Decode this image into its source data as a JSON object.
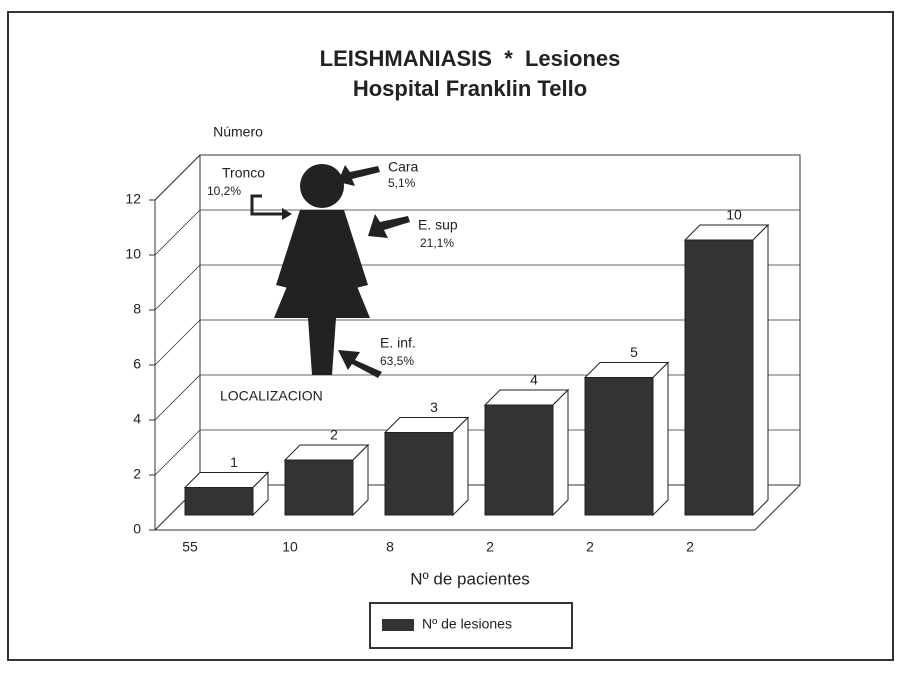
{
  "chart_data": {
    "type": "bar3d",
    "title": "LEISHMANIASIS  *  Lesiones",
    "subtitle": "Hospital Franklin Tello",
    "y_label": "Número",
    "x_label": "Nº de pacientes",
    "categories": [
      "55",
      "10",
      "8",
      "2",
      "2",
      "2"
    ],
    "series": [
      {
        "name": "Nº de lesiones",
        "color": "#333333",
        "values": [
          1,
          2,
          3,
          4,
          5,
          10
        ]
      }
    ],
    "ylim": [
      0,
      12
    ],
    "yticks": [
      0,
      2,
      4,
      6,
      8,
      10,
      12
    ],
    "grid": true,
    "annotations": [
      "Tronco",
      "10,2%",
      "Cara",
      "5,1%",
      "E. sup",
      "21,1%",
      "E. inf.",
      "63,5%",
      "LOCALIZACION"
    ]
  }
}
